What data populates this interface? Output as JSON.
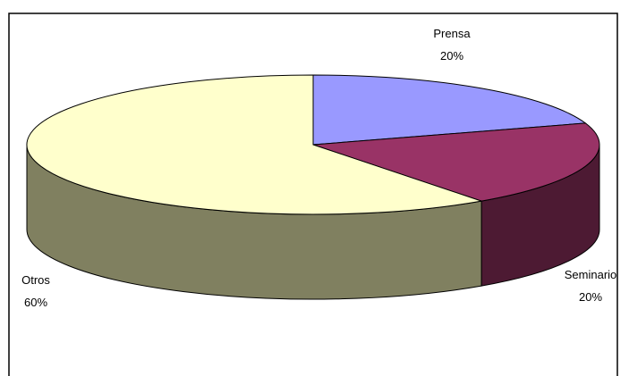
{
  "chart_data": {
    "type": "pie3d",
    "categories": [
      "Prensa",
      "Seminario",
      "Otros"
    ],
    "values": [
      20,
      20,
      60
    ],
    "value_labels": [
      "20%",
      "20%",
      "60%"
    ],
    "colors": [
      "#9999ff",
      "#993366",
      "#ffffcc"
    ],
    "side_colors": [
      "#5c5c99",
      "#4d1a33",
      "#808060"
    ]
  }
}
